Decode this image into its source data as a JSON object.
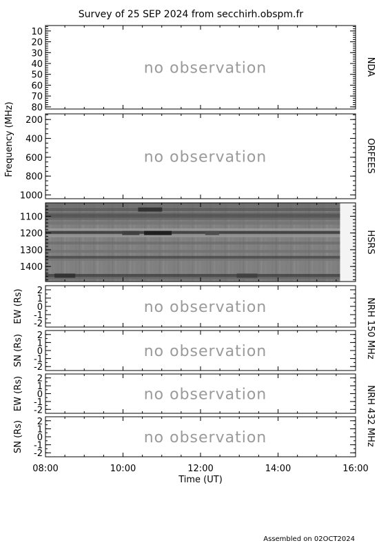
{
  "title": "Survey of 25 SEP 2024 from secchirh.obspm.fr",
  "footer": "Assembled on 02OCT2024",
  "x_axis": {
    "label": "Time (UT)",
    "range": [
      "08:00",
      "16:00"
    ],
    "ticks": [
      "08:00",
      "10:00",
      "12:00",
      "14:00",
      "16:00"
    ]
  },
  "freq_axis_label": "Frequency (MHz)",
  "chart_data": [
    {
      "type": "heatmap",
      "panel": "NDA",
      "right_label": "NDA",
      "ylabel": "Frequency (MHz)",
      "ylim": [
        5,
        82
      ],
      "yticks": [
        10,
        20,
        30,
        40,
        50,
        60,
        70,
        80
      ],
      "status": "no observation"
    },
    {
      "type": "heatmap",
      "panel": "ORFEES",
      "right_label": "ORFEES",
      "ylabel": "Frequency (MHz)",
      "ylim": [
        140,
        1040
      ],
      "yticks": [
        200,
        400,
        600,
        800,
        1000
      ],
      "status": "no observation"
    },
    {
      "type": "heatmap",
      "panel": "HSRS",
      "right_label": "HSRS",
      "ylabel": "Frequency (MHz)",
      "ylim": [
        1020,
        1490
      ],
      "yticks": [
        1100,
        1200,
        1300,
        1400
      ],
      "x_range_hours": [
        8.0,
        16.0
      ],
      "data_end_hour": 15.6,
      "background_gray": 0.5,
      "bands": [
        {
          "freq": 1035,
          "gray": 0.42,
          "width": 6
        },
        {
          "freq": 1060,
          "gray": 0.35,
          "width": 5
        },
        {
          "freq": 1085,
          "gray": 0.38,
          "width": 4
        },
        {
          "freq": 1100,
          "gray": 0.3,
          "width": 6
        },
        {
          "freq": 1115,
          "gray": 0.4,
          "width": 4
        },
        {
          "freq": 1140,
          "gray": 0.45,
          "width": 5
        },
        {
          "freq": 1185,
          "gray": 0.62,
          "width": 6
        },
        {
          "freq": 1200,
          "gray": 0.2,
          "width": 6
        },
        {
          "freq": 1215,
          "gray": 0.6,
          "width": 5
        },
        {
          "freq": 1260,
          "gray": 0.42,
          "width": 4
        },
        {
          "freq": 1310,
          "gray": 0.44,
          "width": 4
        },
        {
          "freq": 1345,
          "gray": 0.28,
          "width": 4
        },
        {
          "freq": 1360,
          "gray": 0.45,
          "width": 3
        },
        {
          "freq": 1455,
          "gray": 0.25,
          "width": 5
        },
        {
          "freq": 1470,
          "gray": 0.4,
          "width": 4
        }
      ]
    },
    {
      "type": "heatmap",
      "panel": "NRH 150 MHz EW",
      "right_label": "NRH 150 MHz",
      "ylabel": "EW (Rs)",
      "ylim": [
        -2.5,
        2.5
      ],
      "yticks": [
        2,
        1,
        0,
        -1,
        -2
      ],
      "status": "no observation"
    },
    {
      "type": "heatmap",
      "panel": "NRH 150 MHz SN",
      "ylabel": "SN (Rs)",
      "ylim": [
        -2.5,
        2.5
      ],
      "yticks": [
        2,
        1,
        0,
        -1,
        -2
      ],
      "status": "no observation"
    },
    {
      "type": "heatmap",
      "panel": "NRH 432 MHz EW",
      "right_label": "NRH 432 MHz",
      "ylabel": "EW (Rs)",
      "ylim": [
        -2.5,
        2.5
      ],
      "yticks": [
        2,
        1,
        0,
        -1,
        -2
      ],
      "status": "no observation"
    },
    {
      "type": "heatmap",
      "panel": "NRH 432 MHz SN",
      "ylabel": "SN (Rs)",
      "ylim": [
        -2.5,
        2.5
      ],
      "yticks": [
        2,
        1,
        0,
        -1,
        -2
      ],
      "status": "no observation"
    }
  ]
}
